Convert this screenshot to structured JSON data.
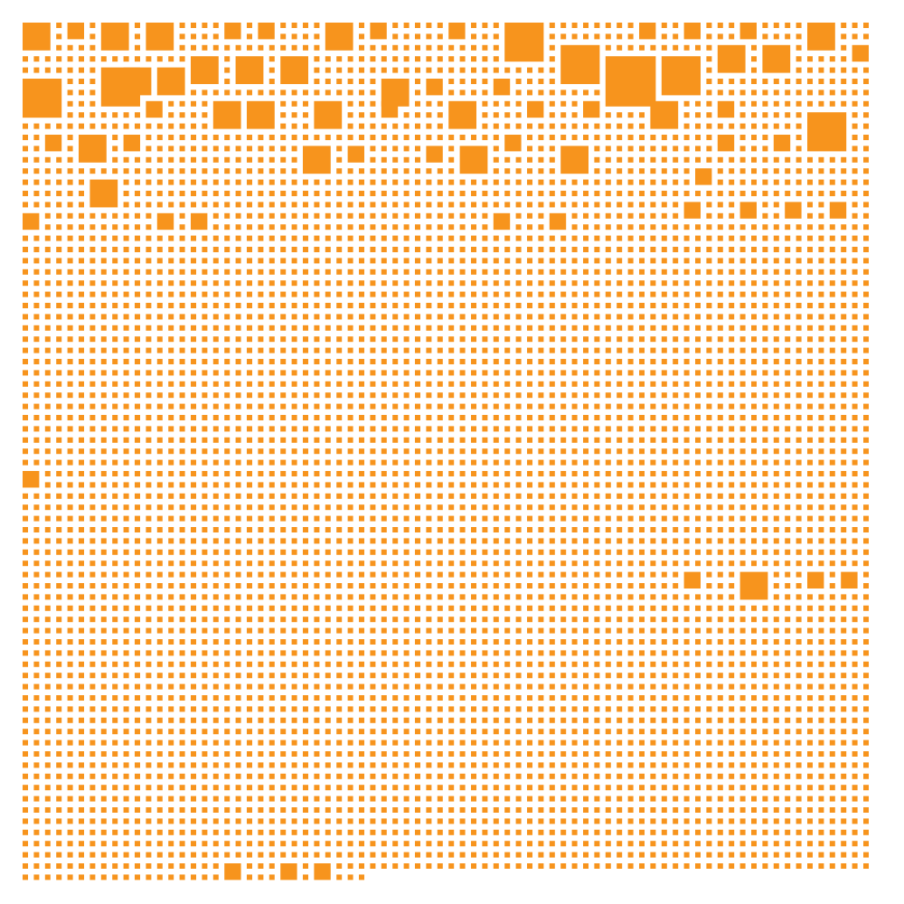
{
  "artwork": {
    "colors": {
      "tile": "#F7941D",
      "background": "#FFFFFF"
    },
    "grid": {
      "columns": 76,
      "rows": 77
    }
  }
}
